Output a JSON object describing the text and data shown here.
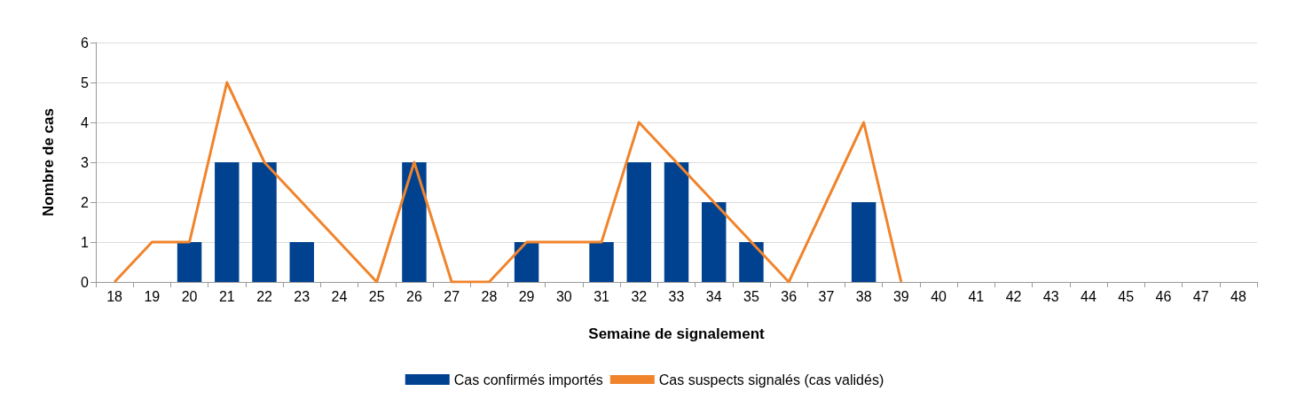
{
  "chart_data": {
    "type": "bar",
    "xlabel": "Semaine de signalement",
    "ylabel": "Nombre de cas",
    "categories": [
      "18",
      "19",
      "20",
      "21",
      "22",
      "23",
      "24",
      "25",
      "26",
      "27",
      "28",
      "29",
      "30",
      "31",
      "32",
      "33",
      "34",
      "35",
      "36",
      "37",
      "38",
      "39",
      "40",
      "41",
      "42",
      "43",
      "44",
      "45",
      "46",
      "47",
      "48"
    ],
    "series": [
      {
        "name": "Cas confirmés importés",
        "color": "#00428f",
        "values": [
          0,
          0,
          1,
          3,
          3,
          1,
          0,
          0,
          3,
          0,
          0,
          1,
          0,
          1,
          3,
          3,
          2,
          1,
          0,
          0,
          2,
          0,
          0,
          0,
          0,
          0,
          0,
          0,
          0,
          0,
          0
        ]
      },
      {
        "name": "Cas suspects signalés (cas validés)",
        "type": "line",
        "color": "#f0842c",
        "values": [
          0,
          1,
          1,
          5,
          3,
          2,
          1,
          0,
          3,
          0,
          0,
          1,
          1,
          1,
          4,
          3,
          2,
          1,
          0,
          2,
          4,
          0,
          null,
          null,
          null,
          null,
          null,
          null,
          null,
          null,
          null
        ]
      }
    ],
    "ylim": [
      0,
      6
    ],
    "yticks": [
      0,
      1,
      2,
      3,
      4,
      5,
      6
    ],
    "grid": "y",
    "legend": "bottom",
    "marker": "none",
    "line_style": "solid"
  }
}
